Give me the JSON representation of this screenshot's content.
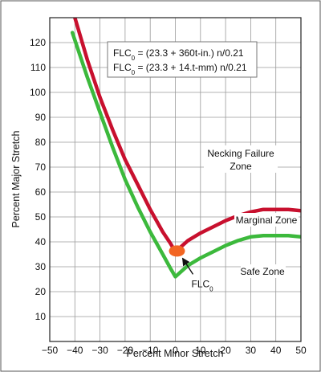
{
  "chart_data": {
    "type": "line",
    "title": "",
    "xlabel": "Percent Minor Stretch",
    "ylabel": "Percent Major Stretch",
    "xlim": [
      -50,
      50
    ],
    "ylim": [
      0,
      130
    ],
    "x_ticks": [
      "−50",
      "−40",
      "−30",
      "−20",
      "−10",
      "0",
      "10",
      "20",
      "30",
      "40",
      "50"
    ],
    "y_ticks": [
      "10",
      "20",
      "30",
      "40",
      "50",
      "60",
      "70",
      "80",
      "90",
      "100",
      "110",
      "120"
    ],
    "grid": true,
    "legend": "none",
    "formulas": [
      {
        "prefix": "FLC",
        "sub": "0",
        "rest": " = (23.3 + 360t-in.) n/0.21"
      },
      {
        "prefix": "FLC",
        "sub": "0",
        "rest": " = (23.3 + 14.t-mm) n/0.21"
      }
    ],
    "zone_labels": {
      "necking_line1": "Necking Failure",
      "necking_line2": "Zone",
      "marginal": "Marginal Zone",
      "safe": "Safe Zone"
    },
    "point_label": {
      "prefix": "FLC",
      "sub": "0"
    },
    "flc0_point": {
      "x": 0,
      "y": 36,
      "color": "#f26522"
    },
    "series": [
      {
        "color": "#c8102e",
        "x": [
          -40,
          -35,
          -30,
          -25,
          -20,
          -15,
          -10,
          -5,
          -2,
          0,
          5,
          10,
          15,
          20,
          25,
          30,
          35,
          40,
          45,
          50
        ],
        "y": [
          130,
          113,
          98,
          85,
          73,
          63,
          53,
          44,
          39.5,
          36,
          40.5,
          43.5,
          46,
          48.5,
          50.5,
          52,
          53,
          53,
          53,
          52.5
        ]
      },
      {
        "color": "#3cb93c",
        "x": [
          -41,
          -35,
          -30,
          -25,
          -20,
          -15,
          -10,
          -5,
          -2,
          0,
          5,
          10,
          15,
          20,
          25,
          30,
          35,
          40,
          45,
          50
        ],
        "y": [
          124,
          106,
          92,
          78,
          65,
          54,
          44,
          35,
          29.5,
          26,
          30.5,
          33.5,
          36,
          38.5,
          40.5,
          42,
          42.5,
          42.5,
          42.5,
          42
        ]
      }
    ]
  }
}
